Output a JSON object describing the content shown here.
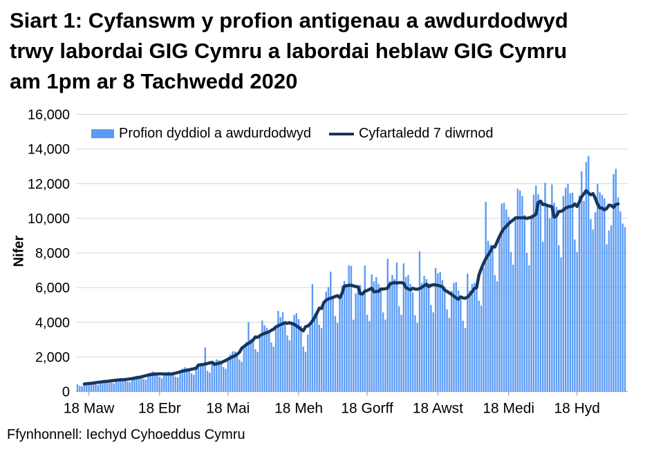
{
  "title_lines": [
    "Siart 1: Cyfanswm y profion antigenau a awdurdodwyd",
    "trwy labordai GIG Cymru a labordai heblaw GIG Cymru",
    "am 1pm ar 8 Tachwedd 2020"
  ],
  "source": "Ffynhonnell: Iechyd Cyhoeddus Cymru",
  "legend": {
    "bars_label": "Profion dyddiol a awdurdodwyd",
    "line_label": "Cyfartaledd 7 diwrnod"
  },
  "colors": {
    "bar": "#5B9BF5",
    "line": "#17365D",
    "grid": "#D6D6D6",
    "axis": "#A6A6A6",
    "text": "#000000"
  },
  "chart_data": {
    "type": "bar",
    "ylabel": "Nifer",
    "ylim": [
      0,
      16000
    ],
    "grid": "horizontal-only",
    "legend_position": "top-inside",
    "ytick_values": [
      0,
      2000,
      4000,
      6000,
      8000,
      10000,
      12000,
      14000,
      16000
    ],
    "ytick_labels": [
      "0",
      "2,000",
      "4,000",
      "6,000",
      "8,000",
      "10,000",
      "12,000",
      "14,000",
      "16,000"
    ],
    "xtick_positions": [
      5,
      36,
      66,
      97,
      127,
      158,
      189,
      219
    ],
    "xtick_labels": [
      "18 Maw",
      "18 Ebr",
      "18 Mai",
      "18 Meh",
      "18 Gorff",
      "18 Awst",
      "18 Medi",
      "18 Hyd"
    ],
    "series": [
      {
        "name": "Profion dyddiol a awdurdodwyd",
        "type": "bar",
        "values": [
          415,
          330,
          305,
          430,
          495,
          535,
          530,
          520,
          420,
          390,
          555,
          625,
          675,
          655,
          635,
          515,
          475,
          670,
          745,
          780,
          750,
          725,
          580,
          535,
          755,
          850,
          910,
          890,
          905,
          735,
          685,
          970,
          1090,
          1160,
          1115,
          1075,
          860,
          770,
          1040,
          1120,
          1145,
          1075,
          1040,
          860,
          815,
          1165,
          1315,
          1405,
          1360,
          1300,
          1050,
          970,
          1365,
          1535,
          1625,
          1560,
          2550,
          1195,
          1095,
          1550,
          1745,
          1855,
          1805,
          1745,
          1410,
          1310,
          1855,
          2130,
          2320,
          2310,
          2265,
          1845,
          1715,
          2500,
          2855,
          4000,
          3025,
          2965,
          2445,
          2295,
          3235,
          4100,
          3830,
          3685,
          3535,
          2830,
          2590,
          3620,
          4650,
          4290,
          4570,
          4035,
          3240,
          2960,
          4060,
          4425,
          4525,
          4180,
          3795,
          2600,
          2300,
          3300,
          3800,
          6200,
          4510,
          4575,
          3855,
          3665,
          5150,
          5770,
          6030,
          6920,
          5510,
          4360,
          3960,
          5510,
          6105,
          6380,
          6105,
          7290,
          7250,
          4145,
          5660,
          6105,
          6150,
          5775,
          7270,
          4430,
          4070,
          6760,
          6360,
          6610,
          6215,
          5825,
          4575,
          4145,
          7660,
          6385,
          6730,
          6490,
          7450,
          4920,
          4425,
          7400,
          6610,
          6730,
          6215,
          5720,
          4410,
          3960,
          8100,
          6270,
          6670,
          6490,
          6240,
          5000,
          4575,
          7120,
          6830,
          6900,
          6435,
          6030,
          4740,
          4255,
          5815,
          6270,
          6320,
          5830,
          5305,
          4085,
          3665,
          6800,
          5825,
          6205,
          6270,
          6345,
          5250,
          4960,
          7140,
          10950,
          8700,
          8470,
          8215,
          6725,
          6365,
          9080,
          10850,
          10900,
          10505,
          10090,
          8060,
          7325,
          10080,
          11700,
          11600,
          11280,
          10190,
          8020,
          7290,
          10200,
          11370,
          11890,
          11385,
          10870,
          8650,
          12050,
          10710,
          10005,
          11950,
          10900,
          10660,
          8445,
          7735,
          11300,
          11760,
          12005,
          11440,
          11480,
          8775,
          8065,
          11320,
          12710,
          11000,
          13250,
          13600,
          9950,
          9350,
          10350,
          12000,
          11500,
          11350,
          11150,
          8500,
          9300,
          9600,
          12550,
          12850,
          11200,
          10400,
          9700,
          9500
        ]
      },
      {
        "name": "Cyfartaledd 7 diwrnod",
        "type": "line",
        "derived_from": "bars",
        "window": 7
      }
    ]
  }
}
